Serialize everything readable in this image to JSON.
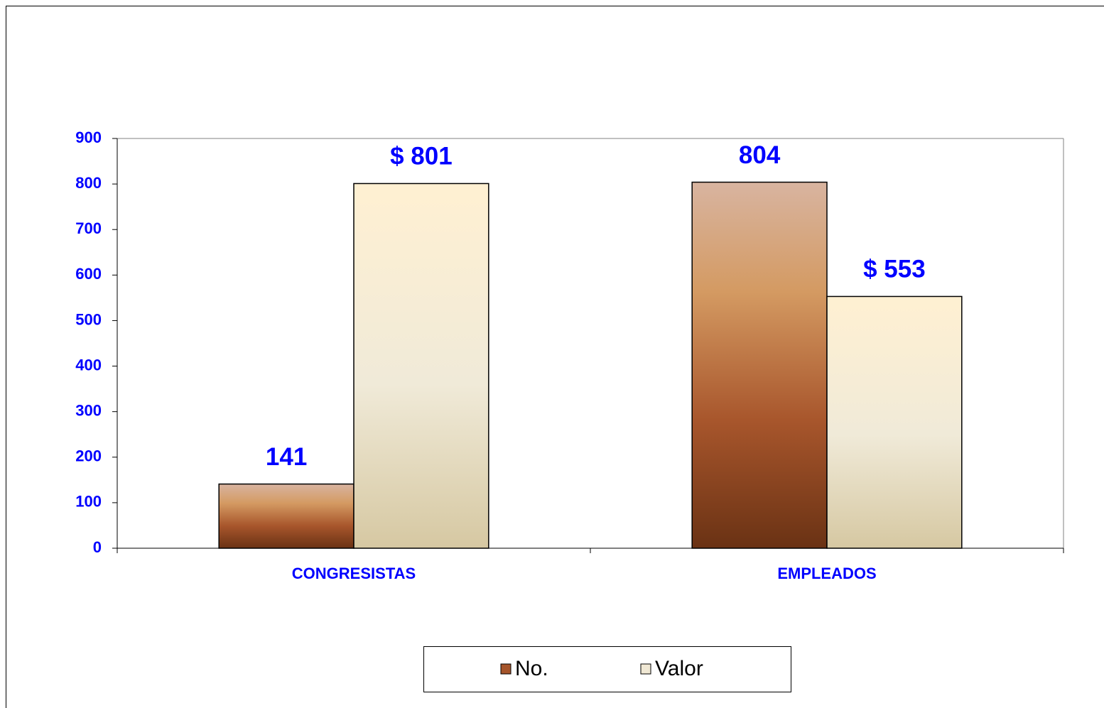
{
  "chart_data": {
    "type": "bar",
    "categories": [
      "CONGRESISTAS",
      "EMPLEADOS"
    ],
    "series": [
      {
        "name": "No.",
        "color": "#a5542a",
        "values": [
          141,
          804
        ]
      },
      {
        "name": "Valor",
        "color": "#f0e8d4",
        "values": [
          801,
          553
        ],
        "value_labels": [
          "$ 801",
          "$ 553"
        ]
      }
    ],
    "ylim": [
      0,
      900
    ],
    "yticks": [
      0,
      100,
      200,
      300,
      400,
      500,
      600,
      700,
      800,
      900
    ],
    "grid": false,
    "legend": "bottom"
  }
}
